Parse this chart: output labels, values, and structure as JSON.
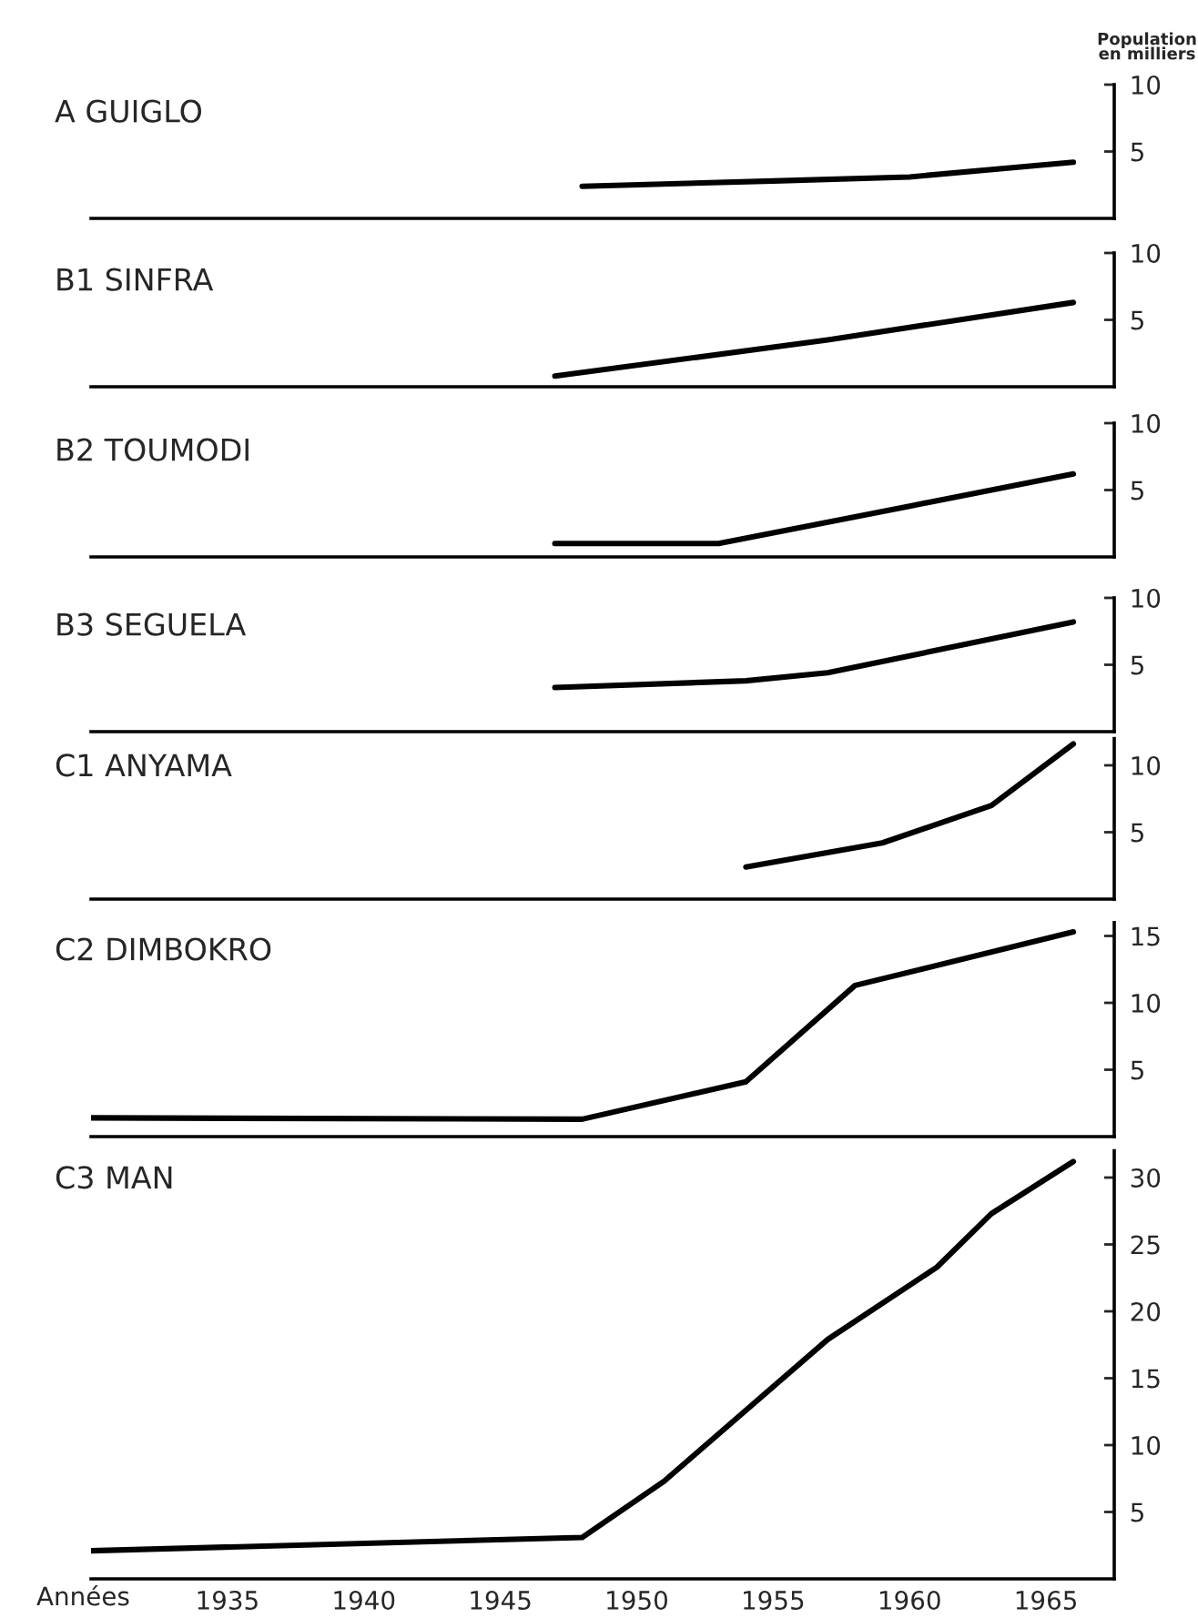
{
  "chart_data": [
    {
      "type": "line",
      "title": "A GUIGLO",
      "ylabel": "Population\nen milliers",
      "series": [
        {
          "color": "#000000",
          "x": [
            1948,
            1955,
            1960,
            1966
          ],
          "values": [
            2.4,
            2.8,
            3.1,
            4.2
          ]
        }
      ],
      "xlim": [
        1930,
        1967.5
      ],
      "xticks": [
        1935,
        1940,
        1945,
        1950,
        1955,
        1960,
        1965
      ],
      "ylim": [
        0,
        10
      ],
      "yticks": [
        5,
        10
      ],
      "tick_labels": "y",
      "grid": false
    },
    {
      "type": "line",
      "title": "B1 SINFRA",
      "series": [
        {
          "color": "#000000",
          "x": [
            1947,
            1957,
            1966
          ],
          "values": [
            0.8,
            3.5,
            6.3
          ]
        }
      ],
      "xlim": [
        1930,
        1967.5
      ],
      "xticks": [
        1935,
        1940,
        1945,
        1950,
        1955,
        1960,
        1965
      ],
      "ylim": [
        0,
        10
      ],
      "yticks": [
        5,
        10
      ],
      "tick_labels": "y",
      "grid": false
    },
    {
      "type": "line",
      "title": "B2 TOUMODI",
      "series": [
        {
          "color": "#000000",
          "x": [
            1947,
            1953,
            1960,
            1966
          ],
          "values": [
            1.0,
            1.0,
            3.8,
            6.2
          ]
        }
      ],
      "xlim": [
        1930,
        1967.5
      ],
      "xticks": [
        1935,
        1940,
        1945,
        1950,
        1955,
        1960,
        1965
      ],
      "ylim": [
        0,
        10
      ],
      "yticks": [
        5,
        10
      ],
      "tick_labels": "y",
      "grid": false
    },
    {
      "type": "line",
      "title": "B3 SEGUELA",
      "series": [
        {
          "color": "#000000",
          "x": [
            1947,
            1954,
            1957,
            1966
          ],
          "values": [
            3.3,
            3.8,
            4.4,
            8.2
          ]
        }
      ],
      "xlim": [
        1930,
        1967.5
      ],
      "xticks": [
        1935,
        1940,
        1945,
        1950,
        1955,
        1960,
        1965
      ],
      "ylim": [
        0,
        10
      ],
      "yticks": [
        5,
        10
      ],
      "tick_labels": "y",
      "grid": false
    },
    {
      "type": "line",
      "title": "C1 ANYAMA",
      "series": [
        {
          "color": "#000000",
          "x": [
            1954,
            1959,
            1963,
            1966
          ],
          "values": [
            2.4,
            4.2,
            7.0,
            11.6
          ]
        }
      ],
      "xlim": [
        1930,
        1967.5
      ],
      "xticks": [
        1935,
        1940,
        1945,
        1950,
        1955,
        1960,
        1965
      ],
      "ylim": [
        0,
        12
      ],
      "yticks": [
        5,
        10
      ],
      "tick_labels": "y",
      "grid": false
    },
    {
      "type": "line",
      "title": "C2 DIMBOKRO",
      "series": [
        {
          "color": "#000000",
          "x": [
            1930,
            1948,
            1954,
            1958,
            1966
          ],
          "values": [
            1.4,
            1.3,
            4.1,
            11.3,
            15.3
          ]
        }
      ],
      "xlim": [
        1930,
        1967.5
      ],
      "xticks": [
        1935,
        1940,
        1945,
        1950,
        1955,
        1960,
        1965
      ],
      "ylim": [
        0,
        16
      ],
      "yticks": [
        5,
        10,
        15
      ],
      "tick_labels": "y",
      "grid": false
    },
    {
      "type": "line",
      "title": "C3 MAN",
      "xlabel": "Années",
      "series": [
        {
          "color": "#000000",
          "x": [
            1930,
            1948,
            1951,
            1957,
            1961,
            1963,
            1966
          ],
          "values": [
            2.1,
            3.1,
            7.3,
            17.9,
            23.3,
            27.3,
            31.2
          ]
        }
      ],
      "xlim": [
        1930,
        1967.5
      ],
      "xticks": [
        1935,
        1940,
        1945,
        1950,
        1955,
        1960,
        1965
      ],
      "ylim": [
        0,
        32
      ],
      "yticks": [
        5,
        10,
        15,
        20,
        25,
        30
      ],
      "grid": false
    }
  ]
}
